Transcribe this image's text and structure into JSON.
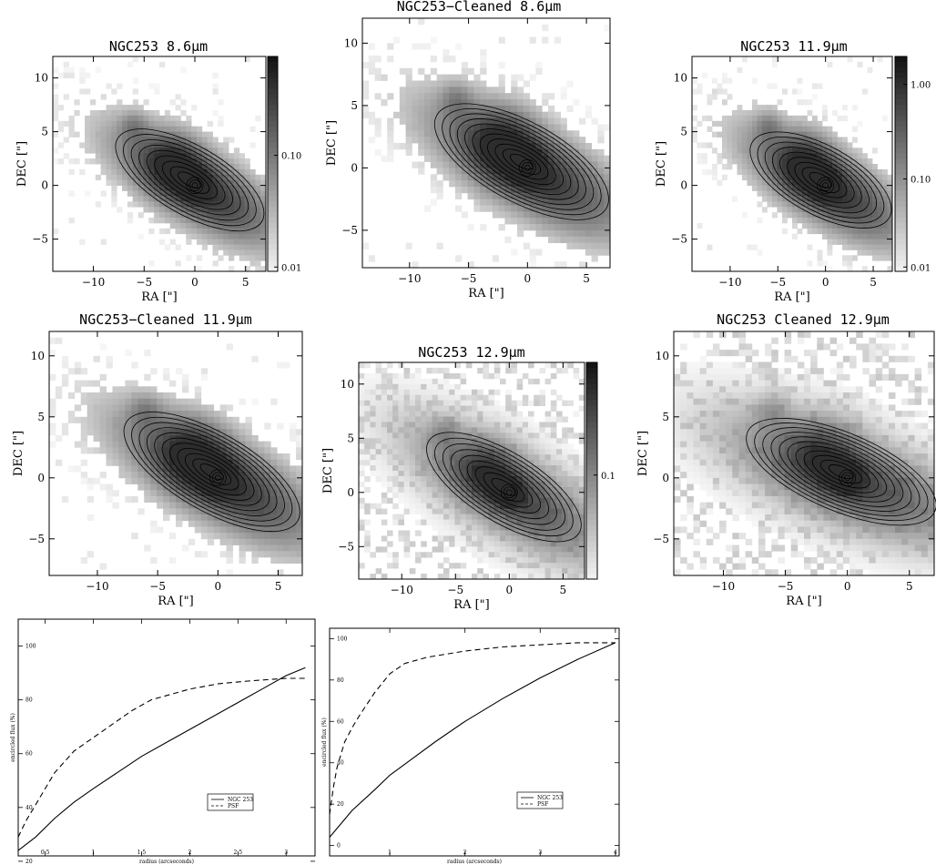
{
  "chart_data": [
    {
      "type": "heatmap",
      "title": "NGC253 8.6μm",
      "xlabel": "RA [\"]",
      "ylabel": "DEC [\"]",
      "xlim": [
        -14,
        7
      ],
      "ylim": [
        -8,
        12
      ],
      "xticks": [
        "−10",
        "−5",
        "0",
        "5"
      ],
      "yticks": [
        "−5",
        "0",
        "5",
        "10"
      ],
      "colorbar": [
        "0.01",
        "0.10"
      ]
    },
    {
      "type": "heatmap",
      "title": "NGC253−Cleaned 8.6μm",
      "xlabel": "RA [\"]",
      "ylabel": "DEC [\"]",
      "xlim": [
        -14,
        7
      ],
      "ylim": [
        -8,
        12
      ],
      "xticks": [
        "−10",
        "−5",
        "0",
        "5"
      ],
      "yticks": [
        "−5",
        "0",
        "5",
        "10"
      ]
    },
    {
      "type": "heatmap",
      "title": "NGC253 11.9μm",
      "xlabel": "RA [\"]",
      "ylabel": "DEC [\"]",
      "xlim": [
        -14,
        7
      ],
      "ylim": [
        -8,
        12
      ],
      "xticks": [
        "−10",
        "−5",
        "0",
        "5"
      ],
      "yticks": [
        "−5",
        "0",
        "5",
        "10"
      ],
      "colorbar": [
        "0.01",
        "0.10",
        "1.00"
      ]
    },
    {
      "type": "heatmap",
      "title": "NGC253−Cleaned 11.9μm",
      "xlabel": "RA [\"]",
      "ylabel": "DEC [\"]",
      "xlim": [
        -14,
        7
      ],
      "ylim": [
        -8,
        12
      ],
      "xticks": [
        "−10",
        "−5",
        "0",
        "5"
      ],
      "yticks": [
        "−5",
        "0",
        "5",
        "10"
      ]
    },
    {
      "type": "heatmap",
      "title": "NGC253 12.9μm",
      "xlabel": "RA [\"]",
      "ylabel": "DEC [\"]",
      "xlim": [
        -14,
        7
      ],
      "ylim": [
        -8,
        12
      ],
      "xticks": [
        "−10",
        "−5",
        "0",
        "5"
      ],
      "yticks": [
        "−5",
        "0",
        "5",
        "10"
      ],
      "colorbar": [
        "0.1"
      ]
    },
    {
      "type": "heatmap",
      "title": "NGC253 Cleaned 12.9μm",
      "xlabel": "RA [\"]",
      "ylabel": "DEC [\"]",
      "xlim": [
        -14,
        7
      ],
      "ylim": [
        -8,
        12
      ],
      "xticks": [
        "−10",
        "−5",
        "0",
        "5"
      ],
      "yticks": [
        "−5",
        "0",
        "5",
        "10"
      ]
    },
    {
      "type": "line",
      "xlabel": "radius (arcseconds)",
      "ylabel": "encircled flux (%)",
      "xlim": [
        0.22,
        3.3
      ],
      "ylim": [
        22,
        110
      ],
      "xticks": [
        "0.5",
        "1",
        "1.5",
        "2",
        "2.5",
        "3"
      ],
      "yticks": [
        "20",
        "40",
        "60",
        "80",
        "100"
      ],
      "series": [
        {
          "name": "NGC 253",
          "style": "solid",
          "x": [
            0.22,
            0.4,
            0.6,
            0.8,
            1.0,
            1.25,
            1.5,
            1.75,
            2.0,
            2.25,
            2.5,
            2.75,
            3.0,
            3.2
          ],
          "y": [
            24,
            29,
            36,
            42,
            47,
            53,
            59,
            64,
            69,
            74,
            79,
            84,
            89,
            92
          ]
        },
        {
          "name": "PSF",
          "style": "dashed",
          "x": [
            0.22,
            0.3,
            0.4,
            0.5,
            0.6,
            0.7,
            0.8,
            1.0,
            1.2,
            1.4,
            1.6,
            1.8,
            2.0,
            2.3,
            2.6,
            3.0,
            3.2
          ],
          "y": [
            29,
            35,
            41,
            47,
            53,
            57,
            61,
            66,
            71,
            76,
            80,
            82,
            84,
            86,
            87,
            88,
            88
          ]
        }
      ],
      "legend": "lower-right"
    },
    {
      "type": "line",
      "xlabel": "radius (arcseconds)",
      "ylabel": "encircled flux (%)",
      "xlim": [
        0.2,
        4.05
      ],
      "ylim": [
        -5,
        105
      ],
      "xticks": [
        "1",
        "2",
        "3",
        "4"
      ],
      "yticks": [
        "0",
        "20",
        "40",
        "60",
        "80",
        "100"
      ],
      "series": [
        {
          "name": "NGC 253",
          "style": "solid",
          "x": [
            0.2,
            0.5,
            0.8,
            1.0,
            1.3,
            1.6,
            2.0,
            2.5,
            3.0,
            3.5,
            4.0
          ],
          "y": [
            4,
            17,
            27,
            34,
            42,
            50,
            60,
            71,
            81,
            90,
            98
          ]
        },
        {
          "name": "PSF",
          "style": "dashed",
          "x": [
            0.2,
            0.25,
            0.3,
            0.4,
            0.5,
            0.6,
            0.8,
            1.0,
            1.2,
            1.5,
            2.0,
            2.5,
            3.0,
            3.5,
            4.0
          ],
          "y": [
            15,
            28,
            38,
            50,
            57,
            63,
            74,
            83,
            88,
            91,
            94,
            96,
            97,
            98,
            98
          ]
        }
      ],
      "legend": "lower-right"
    }
  ]
}
